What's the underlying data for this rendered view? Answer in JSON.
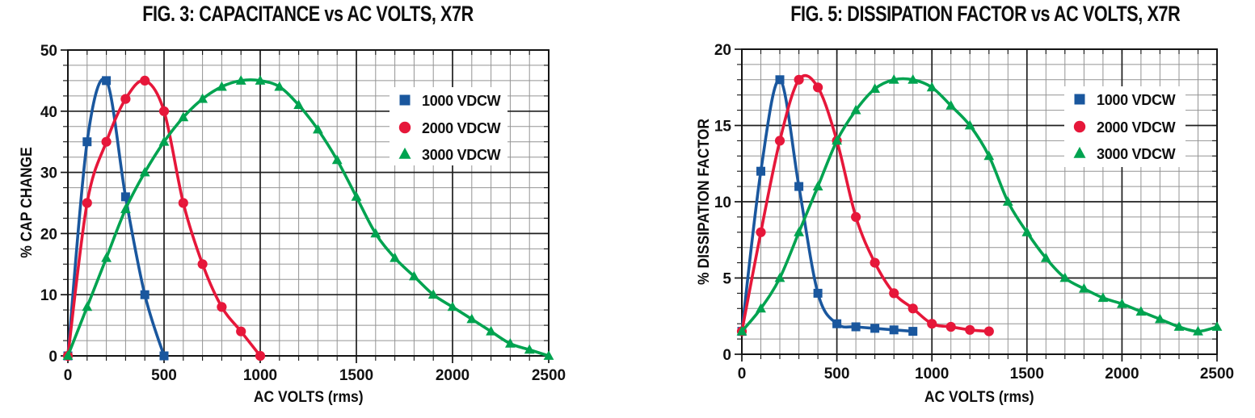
{
  "page": {
    "background": "#ffffff"
  },
  "style": {
    "grid_minor": "#949494",
    "grid_major": "#1f1f1f",
    "axis": "#141414",
    "text": "#111111",
    "legend_bg": "#ffffff",
    "series_blue": "#1a579e",
    "series_red": "#e6173a",
    "series_green": "#00a350"
  },
  "chart_data": [
    {
      "type": "line",
      "title": "FIG. 3: CAPACITANCE vs AC VOLTS, X7R",
      "xlabel": "AC VOLTS (rms)",
      "ylabel": "% CAP CHANGE",
      "xlim": [
        0,
        2500
      ],
      "ylim": [
        0,
        50
      ],
      "x_major_ticks": [
        0,
        500,
        1000,
        1500,
        2000,
        2500
      ],
      "y_major_ticks": [
        0,
        10,
        20,
        30,
        40,
        50
      ],
      "x_minor_step": 100,
      "y_minor_step": 2.5,
      "grid": true,
      "legend_position": "inside upper-right",
      "series": [
        {
          "name": "1000 VDCW",
          "marker": "square",
          "color": "#1a579e",
          "x": [
            0,
            100,
            200,
            300,
            400,
            500
          ],
          "y": [
            0,
            35,
            45,
            26,
            10,
            0
          ]
        },
        {
          "name": "2000 VDCW",
          "marker": "circle",
          "color": "#e6173a",
          "x": [
            0,
            100,
            200,
            300,
            400,
            500,
            600,
            700,
            800,
            900,
            1000
          ],
          "y": [
            0,
            25,
            35,
            42,
            45,
            40,
            25,
            15,
            8,
            4,
            0
          ]
        },
        {
          "name": "3000 VDCW",
          "marker": "triangle",
          "color": "#00a350",
          "x": [
            0,
            100,
            200,
            300,
            400,
            500,
            600,
            700,
            800,
            900,
            1000,
            1100,
            1200,
            1300,
            1400,
            1500,
            1600,
            1700,
            1800,
            1900,
            2000,
            2100,
            2200,
            2300,
            2400,
            2500
          ],
          "y": [
            0,
            8,
            16,
            24,
            30,
            35,
            39,
            42,
            44,
            45,
            45,
            44,
            41,
            37,
            32,
            26,
            20,
            16,
            13,
            10,
            8,
            6,
            4,
            2,
            1,
            0
          ]
        }
      ]
    },
    {
      "type": "line",
      "title": "FIG. 5: DISSIPATION FACTOR vs AC VOLTS, X7R",
      "xlabel": "AC VOLTS (rms)",
      "ylabel": "% DISSIPATION FACTOR",
      "xlim": [
        0,
        2500
      ],
      "ylim": [
        0,
        20
      ],
      "x_major_ticks": [
        0,
        500,
        1000,
        1500,
        2000,
        2500
      ],
      "y_major_ticks": [
        0,
        5,
        10,
        15,
        20
      ],
      "x_minor_step": 100,
      "y_minor_step": 1,
      "grid": true,
      "legend_position": "inside upper-right",
      "series": [
        {
          "name": "1000 VDCW",
          "marker": "square",
          "color": "#1a579e",
          "x": [
            0,
            100,
            200,
            300,
            400,
            500,
            600,
            700,
            800,
            900
          ],
          "y": [
            1.5,
            12,
            18,
            11,
            4,
            2,
            1.8,
            1.7,
            1.6,
            1.5
          ]
        },
        {
          "name": "2000 VDCW",
          "marker": "circle",
          "color": "#e6173a",
          "x": [
            0,
            100,
            200,
            300,
            400,
            500,
            600,
            700,
            800,
            900,
            1000,
            1100,
            1200,
            1300
          ],
          "y": [
            1.5,
            8,
            14,
            18,
            17.5,
            14,
            9,
            6,
            4,
            3,
            2,
            1.8,
            1.6,
            1.5
          ]
        },
        {
          "name": "3000 VDCW",
          "marker": "triangle",
          "color": "#00a350",
          "x": [
            0,
            100,
            200,
            300,
            400,
            500,
            600,
            700,
            800,
            900,
            1000,
            1100,
            1200,
            1300,
            1400,
            1500,
            1600,
            1700,
            1800,
            1900,
            2000,
            2100,
            2200,
            2300,
            2400,
            2500
          ],
          "y": [
            1.5,
            3,
            5,
            8,
            11,
            14,
            16,
            17.4,
            18,
            18,
            17.5,
            16.3,
            15,
            13,
            10,
            8,
            6.3,
            5,
            4.3,
            3.7,
            3.3,
            2.8,
            2.3,
            1.8,
            1.5,
            1.8
          ]
        }
      ]
    }
  ]
}
